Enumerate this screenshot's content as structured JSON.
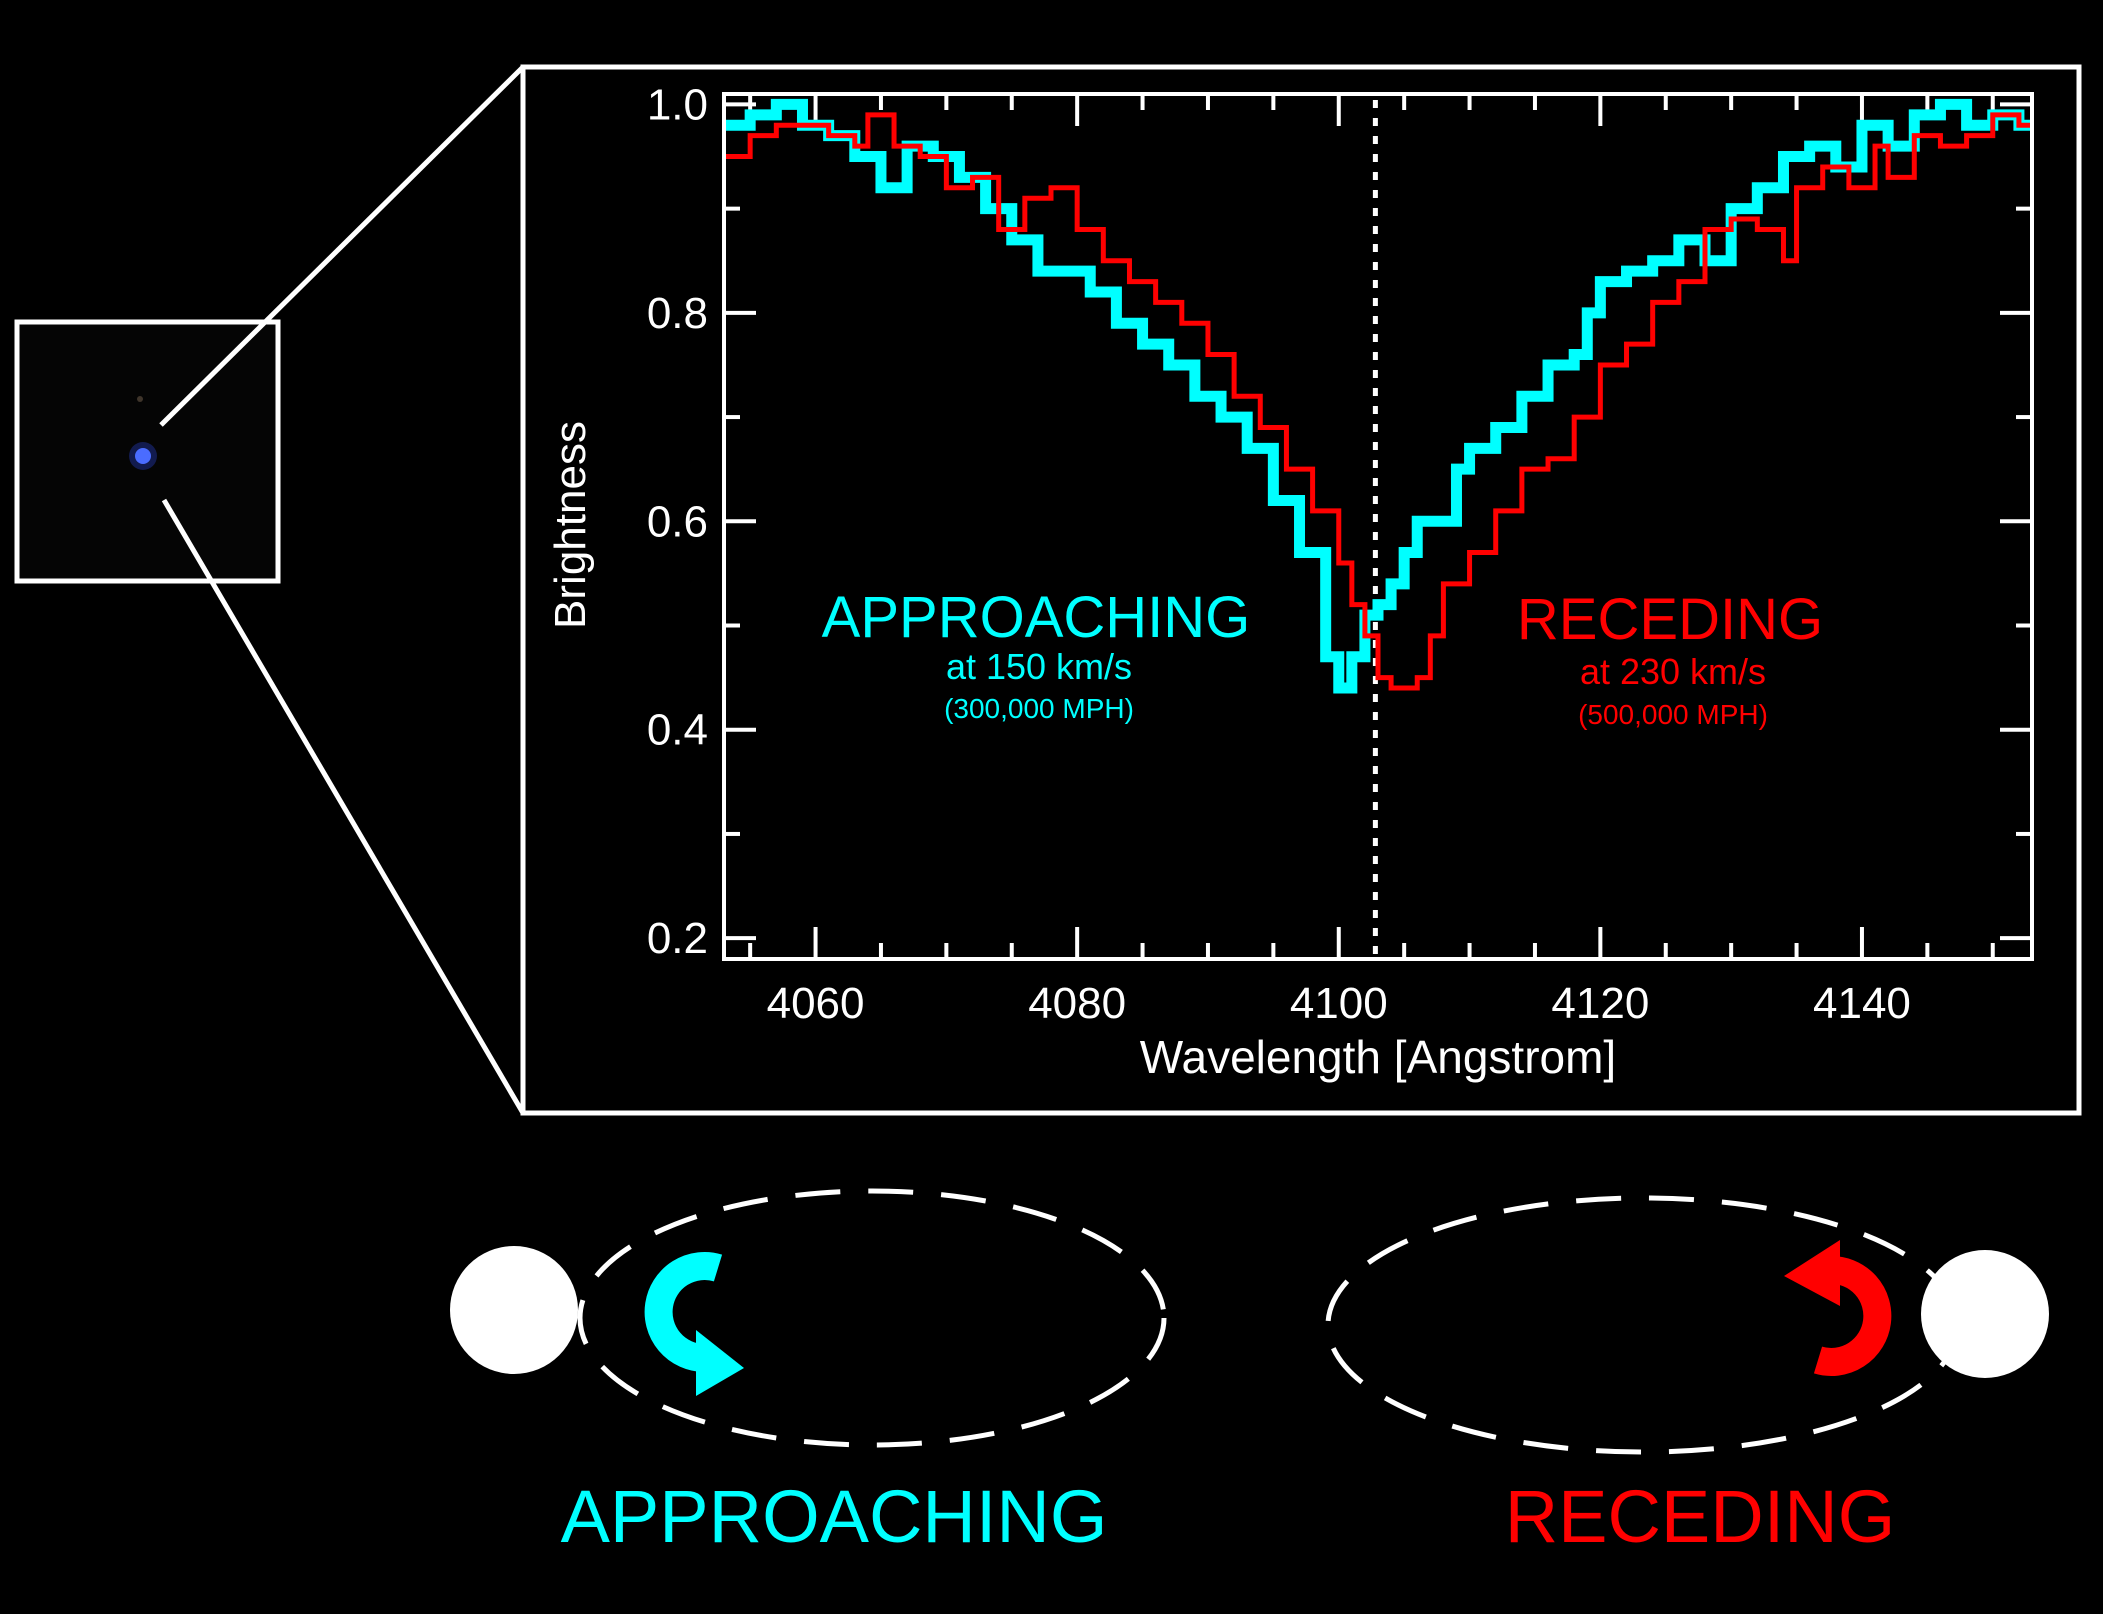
{
  "colors": {
    "approaching": "#00ffff",
    "receding": "#ff0000",
    "star": "#4a6cff",
    "axis": "#ffffff"
  },
  "annotations": {
    "approaching": {
      "title": "APPROACHING",
      "speed": "at 150 km/s",
      "mph": "(300,000 MPH)"
    },
    "receding": {
      "title": "RECEDING",
      "speed": "at 230 km/s",
      "mph": "(500,000 MPH)"
    }
  },
  "diagram": {
    "left_label": "APPROACHING",
    "right_label": "RECEDING"
  },
  "chart_data": {
    "type": "line",
    "step": true,
    "title": "",
    "xlabel": "Wavelength [Angstrom]",
    "ylabel": "Brightness",
    "xlim": [
      4053,
      4153
    ],
    "ylim": [
      0.18,
      1.01
    ],
    "xticks": [
      4060,
      4080,
      4100,
      4120,
      4140
    ],
    "xtick_labels": [
      "4060",
      "4080",
      "4100",
      "4120",
      "4140"
    ],
    "yticks": [
      0.2,
      0.4,
      0.6,
      0.8,
      1.0
    ],
    "ytick_labels": [
      "0.2",
      "0.4",
      "0.6",
      "0.8",
      "1.0"
    ],
    "rest_wavelength": 4102.8,
    "grid": false,
    "series": [
      {
        "name": "APPROACHING",
        "color": "#00ffff",
        "x": [
          4053,
          4055,
          4057,
          4059,
          4061,
          4063,
          4065,
          4067,
          4069,
          4071,
          4073,
          4075,
          4077,
          4079,
          4081,
          4083,
          4085,
          4087,
          4089,
          4091,
          4093,
          4095,
          4097,
          4099,
          4100,
          4101,
          4102,
          4103,
          4104,
          4105,
          4106,
          4108,
          4109,
          4110,
          4112,
          4114,
          4116,
          4118,
          4119,
          4120,
          4122,
          4124,
          4126,
          4128,
          4130,
          4132,
          4134,
          4136,
          4138,
          4140,
          4142,
          4144,
          4146,
          4148,
          4150,
          4152,
          4153
        ],
        "y": [
          0.98,
          0.99,
          1.0,
          0.98,
          0.97,
          0.95,
          0.92,
          0.96,
          0.95,
          0.93,
          0.9,
          0.87,
          0.84,
          0.84,
          0.82,
          0.79,
          0.77,
          0.75,
          0.72,
          0.7,
          0.67,
          0.62,
          0.57,
          0.47,
          0.44,
          0.47,
          0.51,
          0.52,
          0.54,
          0.57,
          0.6,
          0.6,
          0.65,
          0.67,
          0.69,
          0.72,
          0.75,
          0.76,
          0.8,
          0.83,
          0.84,
          0.85,
          0.87,
          0.85,
          0.9,
          0.92,
          0.95,
          0.96,
          0.94,
          0.98,
          0.96,
          0.99,
          1.0,
          0.98,
          0.99,
          0.98,
          0.98
        ]
      },
      {
        "name": "RECEDING",
        "color": "#ff0000",
        "x": [
          4053,
          4055,
          4057,
          4059,
          4061,
          4063,
          4064,
          4066,
          4068,
          4070,
          4072,
          4074,
          4076,
          4078,
          4080,
          4082,
          4084,
          4086,
          4088,
          4090,
          4092,
          4094,
          4096,
          4098,
          4100,
          4101,
          4102,
          4103,
          4104,
          4106,
          4107,
          4108,
          4110,
          4112,
          4114,
          4116,
          4118,
          4120,
          4122,
          4124,
          4126,
          4128,
          4130,
          4132,
          4134,
          4135,
          4137,
          4139,
          4141,
          4142,
          4144,
          4146,
          4148,
          4150,
          4152,
          4153
        ],
        "y": [
          0.95,
          0.97,
          0.98,
          0.98,
          0.97,
          0.96,
          0.99,
          0.96,
          0.95,
          0.92,
          0.93,
          0.88,
          0.91,
          0.92,
          0.88,
          0.85,
          0.83,
          0.81,
          0.79,
          0.76,
          0.72,
          0.69,
          0.65,
          0.61,
          0.56,
          0.52,
          0.49,
          0.45,
          0.44,
          0.45,
          0.49,
          0.54,
          0.57,
          0.61,
          0.65,
          0.66,
          0.7,
          0.75,
          0.77,
          0.81,
          0.83,
          0.88,
          0.89,
          0.88,
          0.85,
          0.92,
          0.94,
          0.92,
          0.96,
          0.93,
          0.97,
          0.96,
          0.97,
          0.99,
          0.98,
          0.98
        ]
      }
    ]
  }
}
